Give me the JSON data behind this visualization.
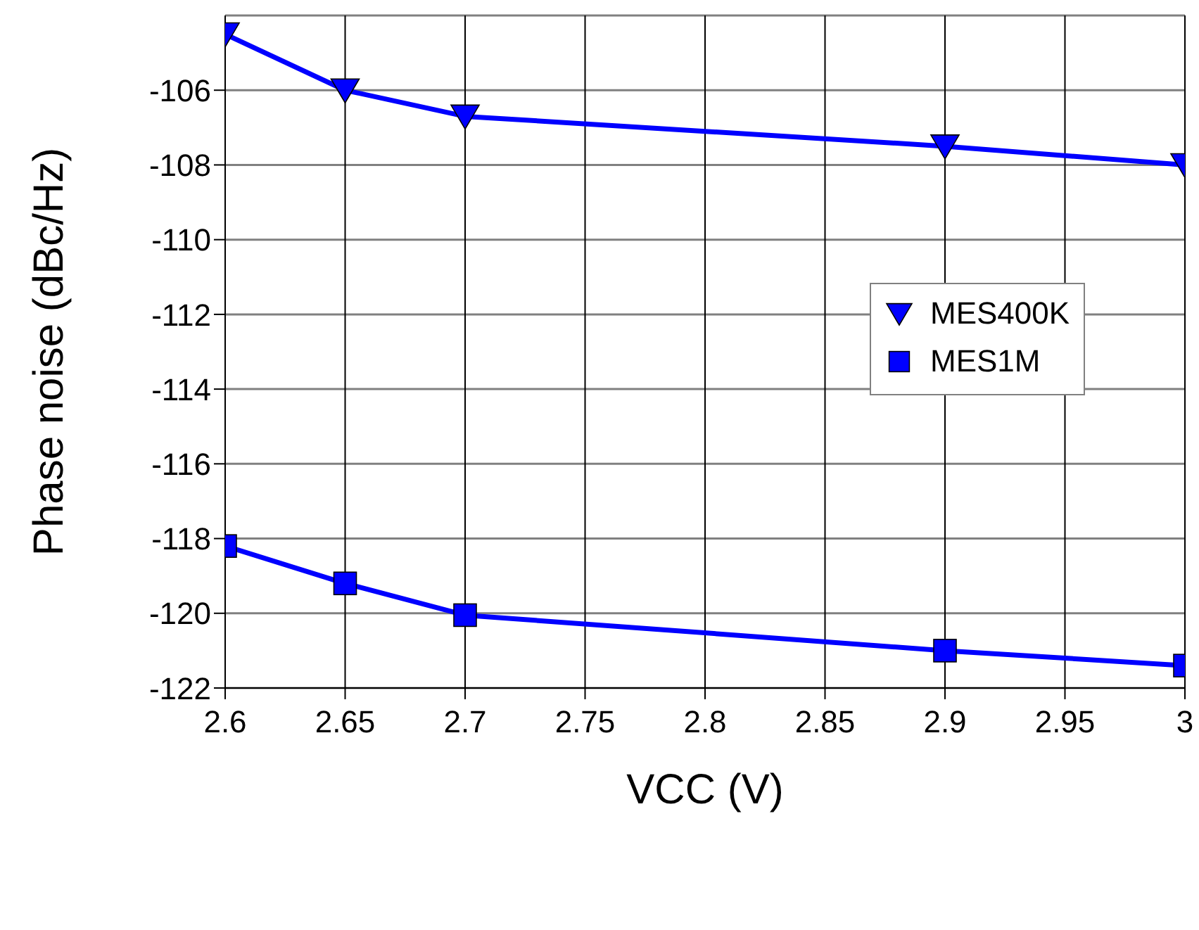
{
  "chart_data": {
    "type": "line",
    "xlabel": "VCC (V)",
    "ylabel": "Phase noise (dBc/Hz)",
    "x": [
      2.6,
      2.65,
      2.7,
      2.9,
      3
    ],
    "series": [
      {
        "name": "MES400K",
        "color": "#0000ff",
        "marker": "triangle",
        "values": [
          -104.5,
          -106,
          -106.7,
          -107.5,
          -108
        ]
      },
      {
        "name": "MES1M",
        "color": "#0000ff",
        "marker": "square",
        "values": [
          -118.2,
          -119.2,
          -120.05,
          -121,
          -121.4
        ]
      }
    ],
    "xlim": [
      2.6,
      3
    ],
    "xticks": [
      2.6,
      2.65,
      2.7,
      2.75,
      2.8,
      2.85,
      2.9,
      2.95,
      3
    ],
    "ylim": [
      -122,
      -104
    ],
    "yticks": [
      -122,
      -120,
      -118,
      -116,
      -114,
      -112,
      -110,
      -108,
      -106
    ],
    "grid": true,
    "legend": "right",
    "line_style": "solid"
  }
}
